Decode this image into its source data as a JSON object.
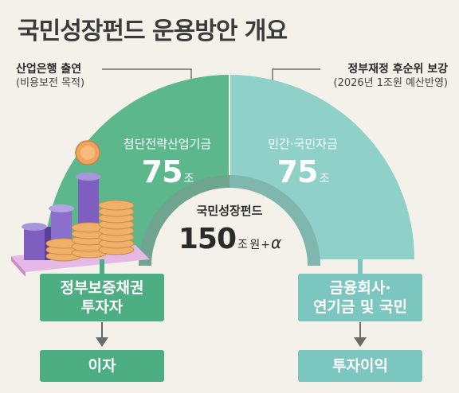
{
  "title": "국민성장펀드 운용방안 개요",
  "left_note": {
    "main": "산업은행 출연",
    "sub": "(비용보전 목적)"
  },
  "right_note": {
    "main": "정부재정 후순위 보강",
    "sub": "(2026년 1조원 예산반영)"
  },
  "left_segment": {
    "name": "첨단전략산업기금",
    "value": "75",
    "unit": "조",
    "color": "#5cb88c"
  },
  "right_segment": {
    "name": "민간·국민자금",
    "value": "75",
    "unit": "조",
    "color": "#8fd0c8"
  },
  "center": {
    "name": "국민성장펀드",
    "value": "150",
    "unit": "조 원",
    "plus": "+",
    "alpha": "α"
  },
  "left_box": {
    "line1": "정부보증채권",
    "line2": "투자자"
  },
  "left_result": "이자",
  "right_box": {
    "line1": "금융회사·",
    "line2": "연기금 및 국민"
  },
  "right_result": "투자이익",
  "colors": {
    "green": "#4eae83",
    "teal": "#7cc6c0",
    "inner_ring": "#6b9a8a"
  }
}
